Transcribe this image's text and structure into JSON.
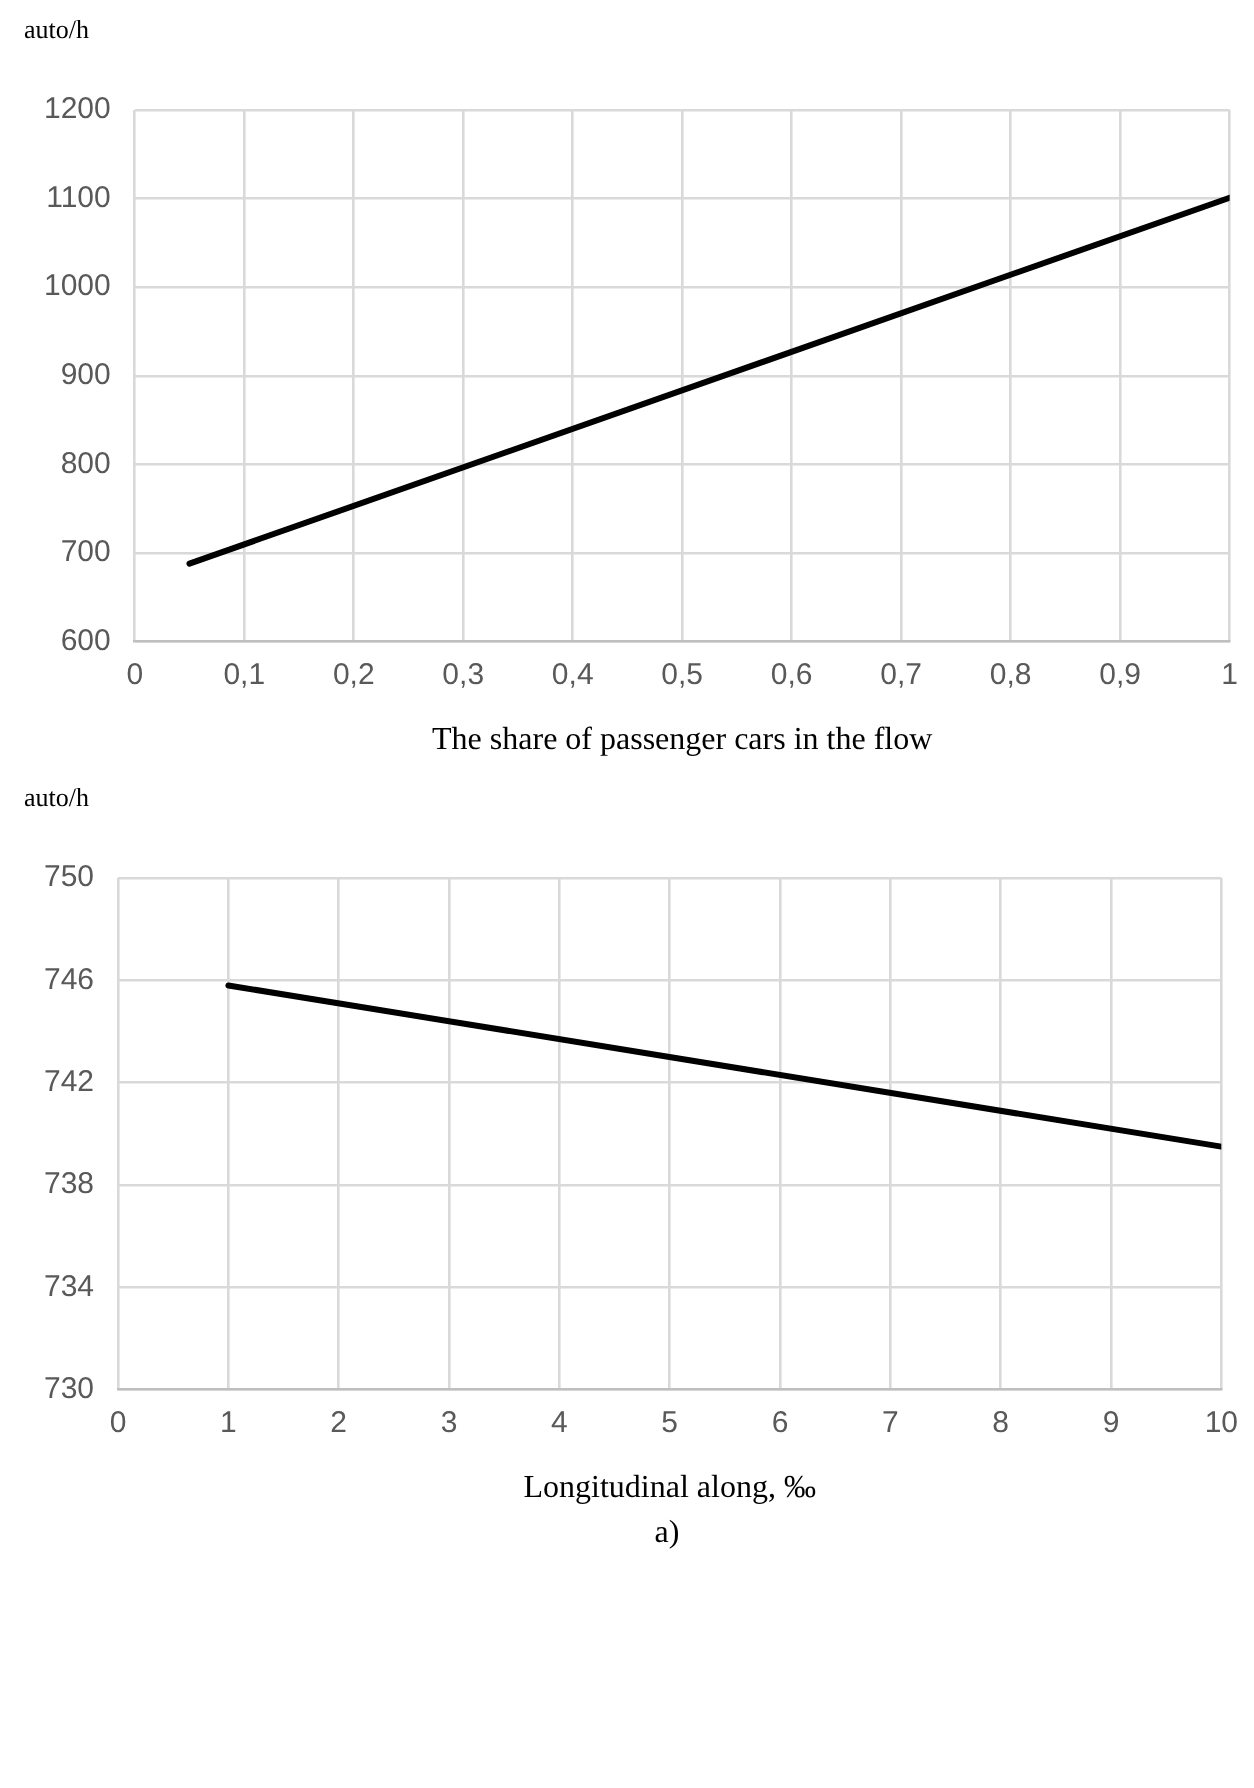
{
  "chart_data": [
    {
      "type": "line",
      "ylabel": "auto/h",
      "xlabel": "The share of passenger cars in the flow",
      "series": [
        {
          "color": "#000000",
          "x": [
            0.05,
            1
          ],
          "values": [
            688,
            1101
          ]
        }
      ],
      "xlim": [
        0,
        1
      ],
      "xticks": [
        0,
        {
          "value": 0.1,
          "label": "0,1"
        },
        {
          "value": 0.2,
          "label": "0,2"
        },
        {
          "value": 0.3,
          "label": "0,3"
        },
        {
          "value": 0.4,
          "label": "0,4"
        },
        {
          "value": 0.5,
          "label": "0,5"
        },
        {
          "value": 0.6,
          "label": "0,6"
        },
        {
          "value": 0.7,
          "label": "0,7"
        },
        {
          "value": 0.8,
          "label": "0,8"
        },
        {
          "value": 0.9,
          "label": "0,9"
        },
        1
      ],
      "ylim": [
        600,
        1200
      ],
      "yticks": [
        600,
        700,
        800,
        900,
        1000,
        1100,
        1200
      ],
      "grid": true
    },
    {
      "type": "line",
      "ylabel": "auto/h",
      "xlabel": "Longitudinal along, ‰",
      "series": [
        {
          "color": "#000000",
          "x": [
            1,
            10
          ],
          "values": [
            745.8,
            739.5
          ]
        }
      ],
      "xlim": [
        0,
        10
      ],
      "xticks": [
        0,
        1,
        2,
        3,
        4,
        5,
        6,
        7,
        8,
        9,
        10
      ],
      "ylim": [
        730,
        750
      ],
      "yticks": [
        730,
        734,
        738,
        742,
        746,
        750
      ],
      "grid": true,
      "annotations": [
        "a)"
      ]
    }
  ]
}
